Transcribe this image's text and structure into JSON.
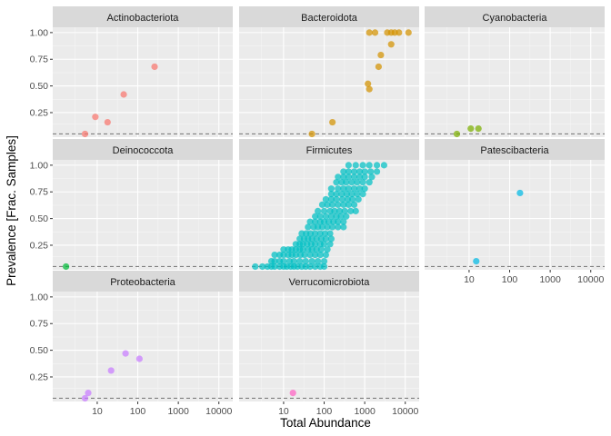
{
  "chart_data": {
    "type": "scatter",
    "title": "",
    "xlabel": "Total Abundance",
    "ylabel": "Prevalence [Frac. Samples]",
    "x_scale": "log10",
    "x_ticks": [
      10,
      100,
      1000,
      10000
    ],
    "x_tick_labels": [
      "10",
      "100",
      "1000",
      "10000"
    ],
    "xlim": [
      0.8,
      22000
    ],
    "y_ticks": [
      0.25,
      0.5,
      0.75,
      1.0
    ],
    "y_tick_labels": [
      "0.25",
      "0.50",
      "0.75",
      "1.00"
    ],
    "ylim": [
      0.02,
      1.05
    ],
    "threshold_line": 0.05,
    "grid": true,
    "legend": "none",
    "facets": [
      {
        "name": "Actinobacteriota",
        "color": "#F8766D",
        "points": [
          [
            5,
            0.05
          ],
          [
            9,
            0.21
          ],
          [
            18,
            0.16
          ],
          [
            45,
            0.42
          ],
          [
            260,
            0.68
          ]
        ]
      },
      {
        "name": "Bacteroidota",
        "color": "#D39200",
        "points": [
          [
            50,
            0.05
          ],
          [
            160,
            0.16
          ],
          [
            1200,
            0.52
          ],
          [
            1300,
            0.47
          ],
          [
            2200,
            0.68
          ],
          [
            1300,
            1.0
          ],
          [
            1800,
            1.0
          ],
          [
            3600,
            1.0
          ],
          [
            4500,
            1.0
          ],
          [
            5500,
            1.0
          ],
          [
            7000,
            1.0
          ],
          [
            12000,
            1.0
          ],
          [
            4500,
            0.89
          ],
          [
            2500,
            0.79
          ]
        ]
      },
      {
        "name": "Cyanobacteria",
        "color": "#7CAE00",
        "points": [
          [
            5,
            0.05
          ],
          [
            11,
            0.1
          ],
          [
            17,
            0.1
          ]
        ]
      },
      {
        "name": "Deinococcota",
        "color": "#00BA38",
        "points": [
          [
            1.7,
            0.05
          ]
        ]
      },
      {
        "name": "Firmicutes",
        "color": "#00BFC4",
        "points": [
          [
            2,
            0.05
          ],
          [
            3,
            0.05
          ],
          [
            4,
            0.05
          ],
          [
            5,
            0.05
          ],
          [
            6,
            0.05
          ],
          [
            8,
            0.05
          ],
          [
            10,
            0.05
          ],
          [
            12,
            0.05
          ],
          [
            15,
            0.05
          ],
          [
            18,
            0.05
          ],
          [
            22,
            0.05
          ],
          [
            28,
            0.05
          ],
          [
            35,
            0.05
          ],
          [
            45,
            0.05
          ],
          [
            60,
            0.05
          ],
          [
            80,
            0.05
          ],
          [
            100,
            0.05
          ],
          [
            5,
            0.1
          ],
          [
            6,
            0.1
          ],
          [
            8,
            0.1
          ],
          [
            10,
            0.1
          ],
          [
            14,
            0.1
          ],
          [
            18,
            0.1
          ],
          [
            25,
            0.1
          ],
          [
            35,
            0.1
          ],
          [
            50,
            0.1
          ],
          [
            70,
            0.1
          ],
          [
            100,
            0.1
          ],
          [
            6,
            0.16
          ],
          [
            8,
            0.16
          ],
          [
            10,
            0.16
          ],
          [
            13,
            0.16
          ],
          [
            16,
            0.16
          ],
          [
            20,
            0.16
          ],
          [
            26,
            0.16
          ],
          [
            33,
            0.16
          ],
          [
            45,
            0.16
          ],
          [
            60,
            0.16
          ],
          [
            80,
            0.16
          ],
          [
            110,
            0.16
          ],
          [
            10,
            0.21
          ],
          [
            13,
            0.21
          ],
          [
            16,
            0.21
          ],
          [
            20,
            0.21
          ],
          [
            25,
            0.21
          ],
          [
            30,
            0.21
          ],
          [
            40,
            0.21
          ],
          [
            50,
            0.21
          ],
          [
            65,
            0.21
          ],
          [
            85,
            0.21
          ],
          [
            120,
            0.21
          ],
          [
            20,
            0.26
          ],
          [
            25,
            0.26
          ],
          [
            30,
            0.26
          ],
          [
            38,
            0.26
          ],
          [
            48,
            0.26
          ],
          [
            60,
            0.26
          ],
          [
            80,
            0.26
          ],
          [
            100,
            0.26
          ],
          [
            140,
            0.26
          ],
          [
            25,
            0.31
          ],
          [
            32,
            0.31
          ],
          [
            40,
            0.31
          ],
          [
            50,
            0.31
          ],
          [
            65,
            0.31
          ],
          [
            85,
            0.31
          ],
          [
            110,
            0.31
          ],
          [
            150,
            0.31
          ],
          [
            28,
            0.36
          ],
          [
            36,
            0.36
          ],
          [
            46,
            0.36
          ],
          [
            60,
            0.36
          ],
          [
            80,
            0.36
          ],
          [
            105,
            0.36
          ],
          [
            140,
            0.36
          ],
          [
            40,
            0.42
          ],
          [
            55,
            0.42
          ],
          [
            70,
            0.42
          ],
          [
            90,
            0.42
          ],
          [
            120,
            0.42
          ],
          [
            160,
            0.42
          ],
          [
            220,
            0.42
          ],
          [
            300,
            0.42
          ],
          [
            45,
            0.47
          ],
          [
            60,
            0.47
          ],
          [
            80,
            0.47
          ],
          [
            100,
            0.47
          ],
          [
            130,
            0.47
          ],
          [
            170,
            0.47
          ],
          [
            220,
            0.47
          ],
          [
            300,
            0.47
          ],
          [
            60,
            0.52
          ],
          [
            80,
            0.52
          ],
          [
            110,
            0.52
          ],
          [
            150,
            0.52
          ],
          [
            200,
            0.52
          ],
          [
            260,
            0.52
          ],
          [
            350,
            0.52
          ],
          [
            70,
            0.57
          ],
          [
            100,
            0.57
          ],
          [
            140,
            0.57
          ],
          [
            180,
            0.57
          ],
          [
            240,
            0.57
          ],
          [
            320,
            0.57
          ],
          [
            450,
            0.57
          ],
          [
            600,
            0.57
          ],
          [
            90,
            0.63
          ],
          [
            120,
            0.63
          ],
          [
            160,
            0.63
          ],
          [
            220,
            0.63
          ],
          [
            300,
            0.63
          ],
          [
            400,
            0.63
          ],
          [
            550,
            0.63
          ],
          [
            110,
            0.68
          ],
          [
            150,
            0.68
          ],
          [
            200,
            0.68
          ],
          [
            280,
            0.68
          ],
          [
            380,
            0.68
          ],
          [
            500,
            0.68
          ],
          [
            700,
            0.68
          ],
          [
            150,
            0.73
          ],
          [
            200,
            0.73
          ],
          [
            270,
            0.73
          ],
          [
            360,
            0.73
          ],
          [
            480,
            0.73
          ],
          [
            650,
            0.73
          ],
          [
            900,
            0.73
          ],
          [
            150,
            0.78
          ],
          [
            220,
            0.78
          ],
          [
            300,
            0.78
          ],
          [
            400,
            0.78
          ],
          [
            550,
            0.78
          ],
          [
            750,
            0.78
          ],
          [
            1000,
            0.78
          ],
          [
            200,
            0.84
          ],
          [
            270,
            0.84
          ],
          [
            350,
            0.84
          ],
          [
            480,
            0.84
          ],
          [
            650,
            0.84
          ],
          [
            900,
            0.84
          ],
          [
            1300,
            0.84
          ],
          [
            220,
            0.89
          ],
          [
            300,
            0.89
          ],
          [
            400,
            0.89
          ],
          [
            550,
            0.89
          ],
          [
            750,
            0.89
          ],
          [
            1000,
            0.89
          ],
          [
            1500,
            0.89
          ],
          [
            300,
            0.94
          ],
          [
            400,
            0.94
          ],
          [
            550,
            0.94
          ],
          [
            750,
            0.94
          ],
          [
            1000,
            0.94
          ],
          [
            1400,
            0.94
          ],
          [
            2000,
            0.94
          ],
          [
            400,
            1.0
          ],
          [
            600,
            1.0
          ],
          [
            900,
            1.0
          ],
          [
            1300,
            1.0
          ],
          [
            2000,
            1.0
          ],
          [
            3000,
            1.0
          ]
        ]
      },
      {
        "name": "Patescibacteria",
        "color": "#00B9E3",
        "points": [
          [
            15,
            0.1
          ],
          [
            180,
            0.74
          ]
        ]
      },
      {
        "name": "Proteobacteria",
        "color": "#C77CFF",
        "points": [
          [
            5,
            0.05
          ],
          [
            6,
            0.1
          ],
          [
            22,
            0.31
          ],
          [
            50,
            0.47
          ],
          [
            110,
            0.42
          ]
        ]
      },
      {
        "name": "Verrucomicrobiota",
        "color": "#FF61C3",
        "points": [
          [
            17,
            0.1
          ]
        ]
      }
    ]
  }
}
